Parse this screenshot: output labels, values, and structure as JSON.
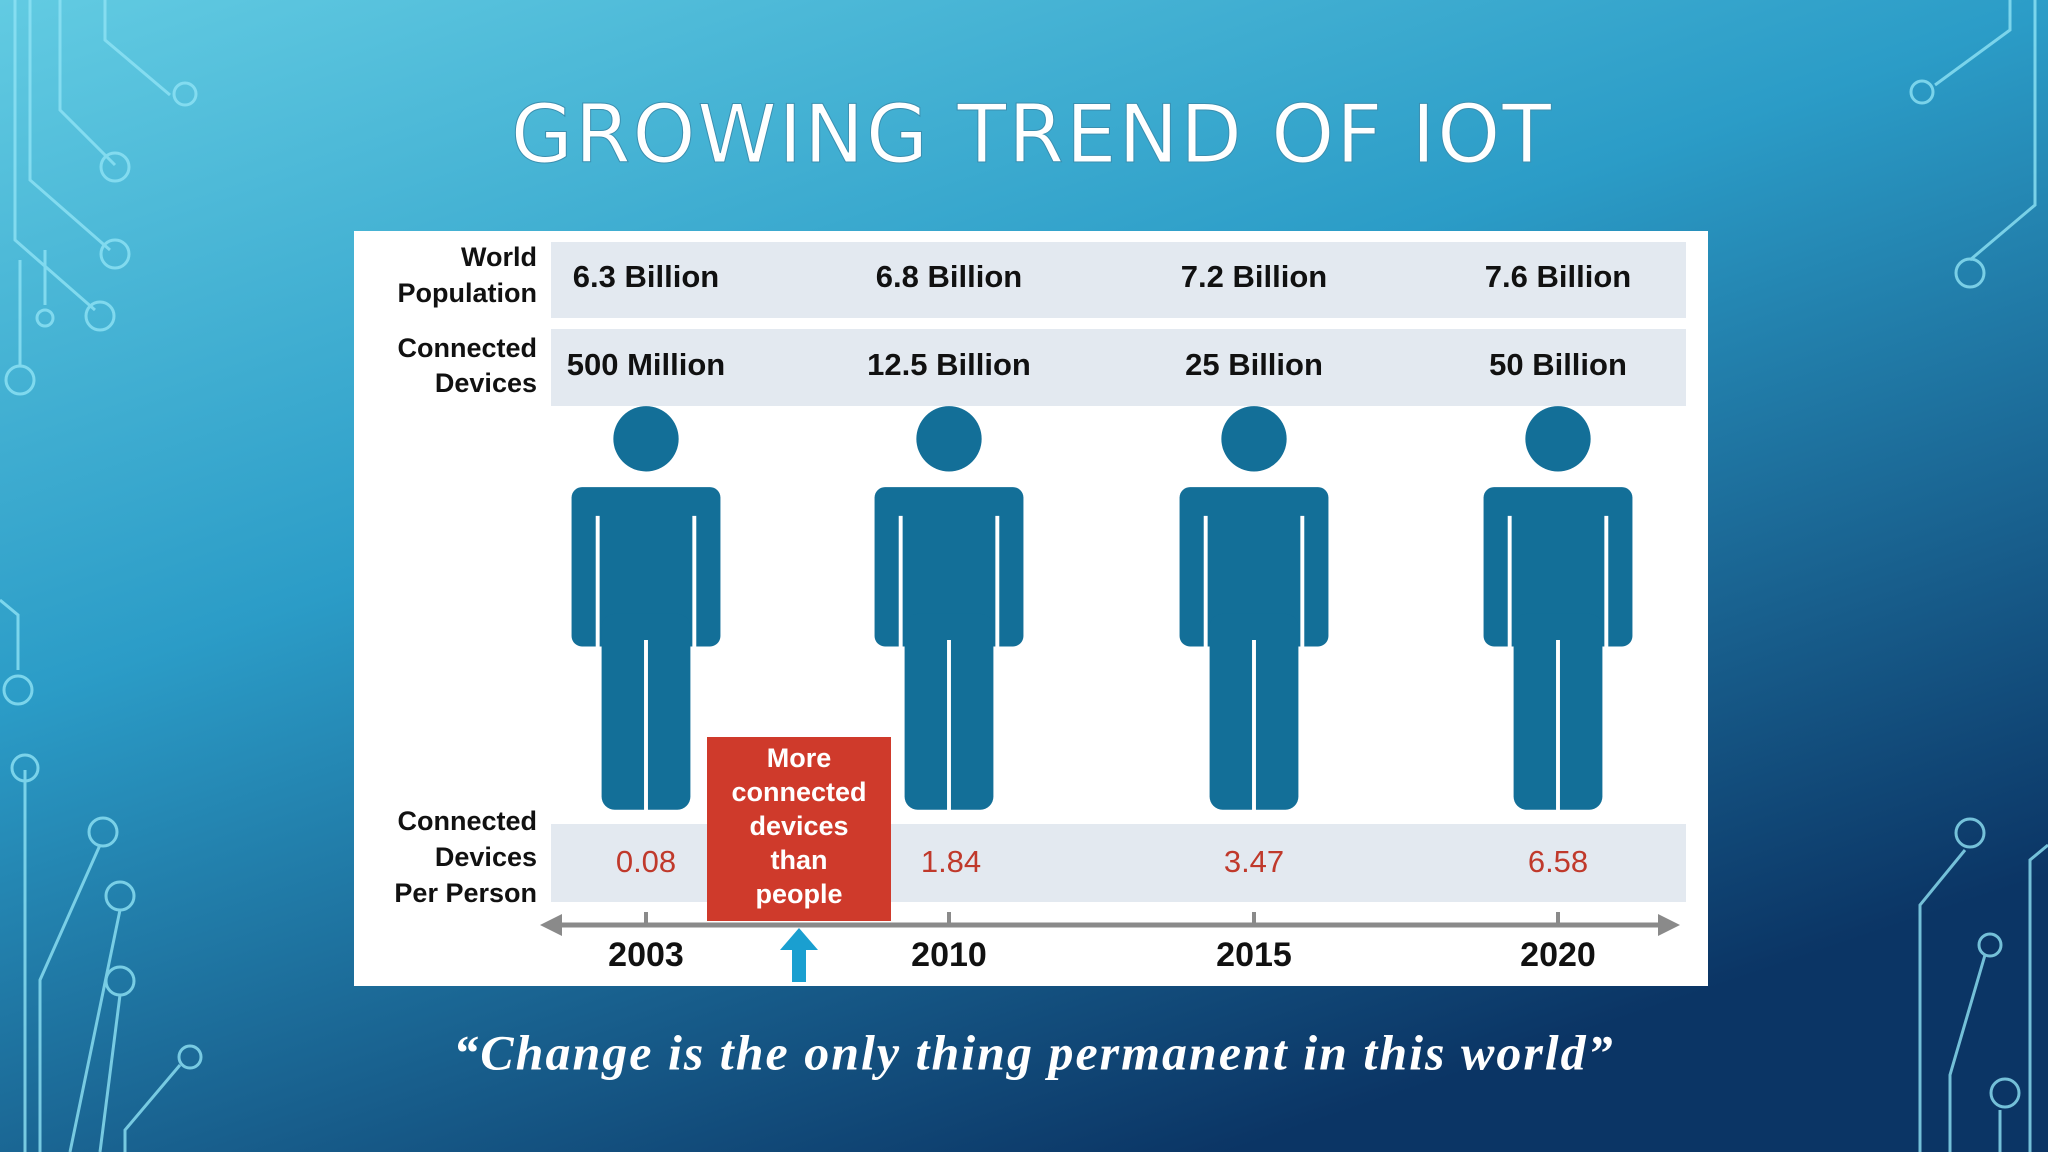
{
  "title": "GROWING TREND OF IOT",
  "table": {
    "row_labels": [
      [
        "World",
        "Population"
      ],
      [
        "Connected",
        "Devices"
      ],
      [
        "Connected",
        "Devices",
        "Per Person"
      ]
    ],
    "population": [
      "6.3 Billion",
      "6.8 Billion",
      "7.2 Billion",
      "7.6 Billion"
    ],
    "devices": [
      "500 Million",
      "12.5 Billion",
      "25 Billion",
      "50 Billion"
    ],
    "per_person": [
      "0.08",
      "1.84",
      "3.47",
      "6.58"
    ],
    "years": [
      "2003",
      "2010",
      "2015",
      "2020"
    ]
  },
  "callout": [
    "More",
    "connected",
    "devices",
    "than",
    "people"
  ],
  "quote": "“Change is the only thing permanent in this world”"
}
